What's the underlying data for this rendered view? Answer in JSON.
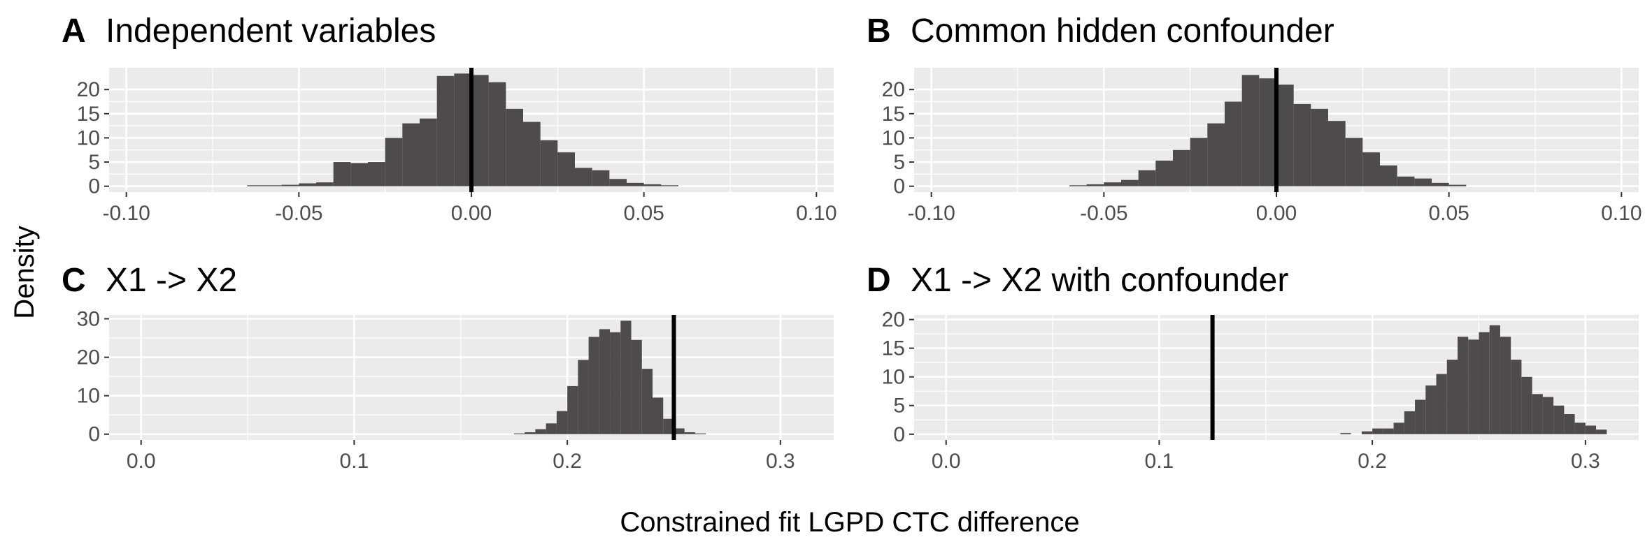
{
  "xlabel": "Constrained fit LGPD CTC difference",
  "ylabel": "Density",
  "colors": {
    "panel_bg": "#ebebeb",
    "grid": "#ffffff",
    "bar": "#4d4b4c",
    "ref_line": "#000000",
    "tick_text": "#4d4d4d"
  },
  "chart_data": [
    {
      "type": "bar",
      "letter": "A",
      "title": "Independent variables",
      "xlim": [
        -0.105,
        0.105
      ],
      "ylim": [
        -1.2,
        24.5
      ],
      "xticks": [
        -0.1,
        -0.05,
        0.0,
        0.05,
        0.1
      ],
      "xtick_labels": [
        "-0.10",
        "-0.05",
        "0.00",
        "0.05",
        "0.10"
      ],
      "yticks": [
        0,
        5,
        10,
        15,
        20
      ],
      "ytick_labels": [
        "0",
        "5",
        "10",
        "15",
        "20"
      ],
      "bin_width": 0.005,
      "bin_starts": [
        -0.065,
        -0.06,
        -0.055,
        -0.05,
        -0.045,
        -0.04,
        -0.035,
        -0.03,
        -0.025,
        -0.02,
        -0.015,
        -0.01,
        -0.005,
        0.0,
        0.005,
        0.01,
        0.015,
        0.02,
        0.025,
        0.03,
        0.035,
        0.04,
        0.045,
        0.05,
        0.055
      ],
      "density": [
        0.2,
        0.2,
        0.3,
        0.6,
        0.8,
        5.0,
        4.8,
        5.0,
        10.0,
        13.0,
        14.0,
        22.8,
        23.3,
        23.0,
        21.5,
        16.0,
        13.3,
        9.5,
        7.0,
        3.8,
        3.3,
        1.5,
        0.7,
        0.4,
        0.2
      ],
      "ref_line": 0.0
    },
    {
      "type": "bar",
      "letter": "B",
      "title": "Common hidden confounder",
      "xlim": [
        -0.105,
        0.105
      ],
      "ylim": [
        -1.2,
        24.5
      ],
      "xticks": [
        -0.1,
        -0.05,
        0.0,
        0.05,
        0.1
      ],
      "xtick_labels": [
        "-0.10",
        "-0.05",
        "0.00",
        "0.05",
        "0.10"
      ],
      "yticks": [
        0,
        5,
        10,
        15,
        20
      ],
      "ytick_labels": [
        "0",
        "5",
        "10",
        "15",
        "20"
      ],
      "bin_width": 0.005,
      "bin_starts": [
        -0.06,
        -0.055,
        -0.05,
        -0.045,
        -0.04,
        -0.035,
        -0.03,
        -0.025,
        -0.02,
        -0.015,
        -0.01,
        -0.005,
        0.0,
        0.005,
        0.01,
        0.015,
        0.02,
        0.025,
        0.03,
        0.035,
        0.04,
        0.045,
        0.05
      ],
      "density": [
        0.2,
        0.4,
        0.8,
        1.3,
        3.3,
        5.3,
        7.5,
        10.0,
        13.0,
        17.5,
        23.0,
        22.3,
        21.0,
        17.0,
        16.0,
        13.5,
        10.0,
        7.0,
        4.3,
        2.0,
        1.6,
        0.7,
        0.3
      ],
      "ref_line": 0.0
    },
    {
      "type": "bar",
      "letter": "C",
      "title": "X1 -> X2",
      "xlim": [
        -0.015,
        0.325
      ],
      "ylim": [
        -1.5,
        31.0
      ],
      "xticks": [
        0.0,
        0.1,
        0.2,
        0.3
      ],
      "xtick_labels": [
        "0.0",
        "0.1",
        "0.2",
        "0.3"
      ],
      "yticks": [
        0,
        10,
        20,
        30
      ],
      "ytick_labels": [
        "0",
        "10",
        "20",
        "30"
      ],
      "bin_width": 0.005,
      "bin_starts": [
        0.175,
        0.18,
        0.185,
        0.19,
        0.195,
        0.2,
        0.205,
        0.21,
        0.215,
        0.22,
        0.225,
        0.23,
        0.235,
        0.24,
        0.245,
        0.25,
        0.255,
        0.26
      ],
      "density": [
        0.2,
        0.5,
        1.3,
        2.8,
        6.0,
        12.5,
        19.3,
        25.3,
        27.3,
        26.5,
        29.5,
        24.5,
        17.0,
        9.5,
        4.0,
        1.5,
        0.5,
        0.2
      ],
      "ref_line": 0.25
    },
    {
      "type": "bar",
      "letter": "D",
      "title": "X1 -> X2 with confounder",
      "xlim": [
        -0.015,
        0.325
      ],
      "ylim": [
        -1.0,
        20.8
      ],
      "xticks": [
        0.0,
        0.1,
        0.2,
        0.3
      ],
      "xtick_labels": [
        "0.0",
        "0.1",
        "0.2",
        "0.3"
      ],
      "yticks": [
        0,
        5,
        10,
        15,
        20
      ],
      "ytick_labels": [
        "0",
        "5",
        "10",
        "15",
        "20"
      ],
      "bin_width": 0.005,
      "bin_starts": [
        0.185,
        0.195,
        0.2,
        0.205,
        0.21,
        0.215,
        0.22,
        0.225,
        0.23,
        0.235,
        0.24,
        0.245,
        0.25,
        0.255,
        0.26,
        0.265,
        0.27,
        0.275,
        0.28,
        0.285,
        0.29,
        0.295,
        0.3,
        0.305
      ],
      "density": [
        0.2,
        0.5,
        1.0,
        1.0,
        2.0,
        4.0,
        6.0,
        8.5,
        10.5,
        13.0,
        17.0,
        16.5,
        17.8,
        19.0,
        17.0,
        13.0,
        10.0,
        7.0,
        6.5,
        5.0,
        3.5,
        2.0,
        1.5,
        0.8
      ],
      "ref_line": 0.125
    }
  ]
}
